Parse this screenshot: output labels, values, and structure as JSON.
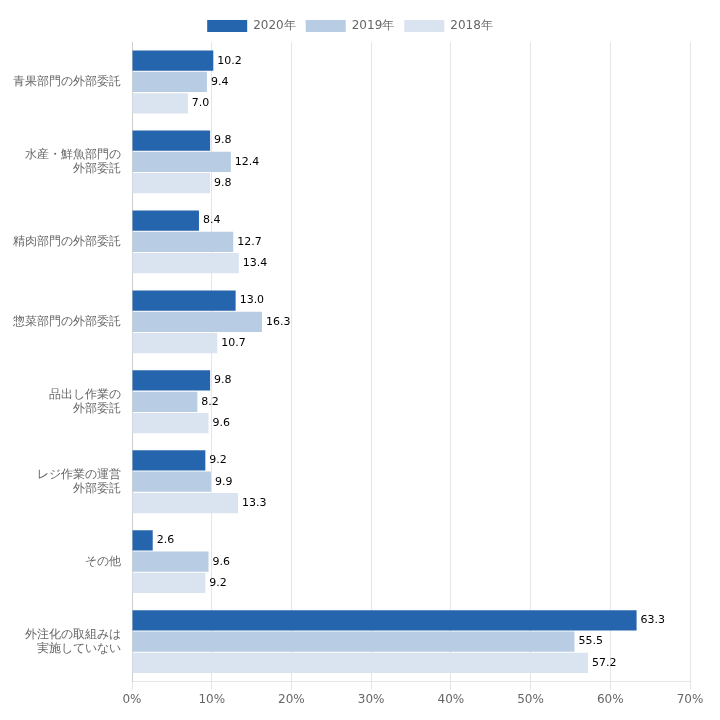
{
  "chart_data": {
    "type": "bar",
    "orientation": "horizontal",
    "categories": [
      "青果部門の外部委託",
      "水産・鮮魚部門の\n外部委託",
      "精肉部門の外部委託",
      "惣菜部門の外部委託",
      "品出し作業の\n外部委託",
      "レジ作業の運営\n外部委託",
      "その他",
      "外注化の取組みは\n実施していない"
    ],
    "series": [
      {
        "name": "2020年",
        "color": "#2565AE",
        "values": [
          10.2,
          9.8,
          8.4,
          13.0,
          9.8,
          9.2,
          2.6,
          63.3
        ],
        "value_labels": [
          "10.2",
          "9.8",
          "8.4",
          "13.0",
          "9.8",
          "9.2",
          "2.6",
          "63.3"
        ]
      },
      {
        "name": "2019年",
        "color": "#B8CCE4",
        "values": [
          9.4,
          12.4,
          12.7,
          16.3,
          8.2,
          9.9,
          9.6,
          55.5
        ],
        "value_labels": [
          "9.4",
          "12.4",
          "12.7",
          "16.3",
          "8.2",
          "9.9",
          "9.6",
          "55.5"
        ]
      },
      {
        "name": "2018年",
        "color": "#DAE3F0",
        "values": [
          7.0,
          9.8,
          13.4,
          10.7,
          9.6,
          13.3,
          9.2,
          57.2
        ],
        "value_labels": [
          "7.0",
          "9.8",
          "13.4",
          "10.7",
          "9.6",
          "13.3",
          "9.2",
          "57.2"
        ]
      }
    ],
    "xlim": [
      0,
      70
    ],
    "xticks": [
      {
        "value": 0,
        "label": "0%"
      },
      {
        "value": 10,
        "label": "10%"
      },
      {
        "value": 20,
        "label": "20%"
      },
      {
        "value": 30,
        "label": "30%"
      },
      {
        "value": 40,
        "label": "40%"
      },
      {
        "value": 50,
        "label": "50%"
      },
      {
        "value": 60,
        "label": "60%"
      },
      {
        "value": 70,
        "label": "70%"
      }
    ],
    "grid": true,
    "legend": "top",
    "data_labels": true
  }
}
